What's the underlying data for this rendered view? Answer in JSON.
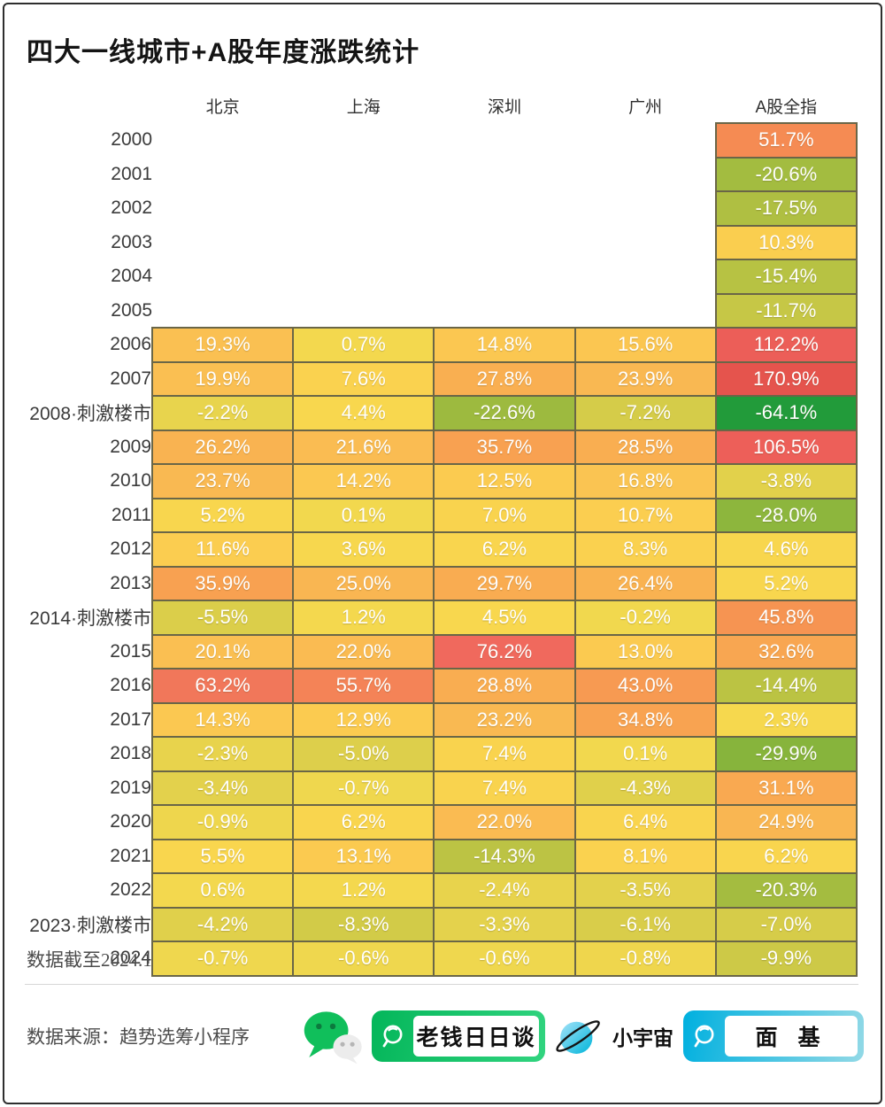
{
  "title": "四大一线城市+A股年度涨跌统计",
  "chart_data": {
    "type": "heatmap",
    "title": "四大一线城市+A股年度涨跌统计",
    "unit": "%",
    "columns": [
      "北京",
      "上海",
      "深圳",
      "广州",
      "A股全指"
    ],
    "rows": [
      {
        "label": "2000",
        "values": [
          null,
          null,
          null,
          null,
          51.7
        ]
      },
      {
        "label": "2001",
        "values": [
          null,
          null,
          null,
          null,
          -20.6
        ]
      },
      {
        "label": "2002",
        "values": [
          null,
          null,
          null,
          null,
          -17.5
        ]
      },
      {
        "label": "2003",
        "values": [
          null,
          null,
          null,
          null,
          10.3
        ]
      },
      {
        "label": "2004",
        "values": [
          null,
          null,
          null,
          null,
          -15.4
        ]
      },
      {
        "label": "2005",
        "values": [
          null,
          null,
          null,
          null,
          -11.7
        ]
      },
      {
        "label": "2006",
        "values": [
          19.3,
          0.7,
          14.8,
          15.6,
          112.2
        ]
      },
      {
        "label": "2007",
        "values": [
          19.9,
          7.6,
          27.8,
          23.9,
          170.9
        ]
      },
      {
        "label": "2008·刺激楼市",
        "values": [
          -2.2,
          4.4,
          -22.6,
          -7.2,
          -64.1
        ]
      },
      {
        "label": "2009",
        "values": [
          26.2,
          21.6,
          35.7,
          28.5,
          106.5
        ]
      },
      {
        "label": "2010",
        "values": [
          23.7,
          14.2,
          12.5,
          16.8,
          -3.8
        ]
      },
      {
        "label": "2011",
        "values": [
          5.2,
          0.1,
          7.0,
          10.7,
          -28.0
        ]
      },
      {
        "label": "2012",
        "values": [
          11.6,
          3.6,
          6.2,
          8.3,
          4.6
        ]
      },
      {
        "label": "2013",
        "values": [
          35.9,
          25.0,
          29.7,
          26.4,
          5.2
        ]
      },
      {
        "label": "2014·刺激楼市",
        "values": [
          -5.5,
          1.2,
          4.5,
          -0.2,
          45.8
        ]
      },
      {
        "label": "2015",
        "values": [
          20.1,
          22.0,
          76.2,
          13.0,
          32.6
        ]
      },
      {
        "label": "2016",
        "values": [
          63.2,
          55.7,
          28.8,
          43.0,
          -14.4
        ]
      },
      {
        "label": "2017",
        "values": [
          14.3,
          12.9,
          23.2,
          34.8,
          2.3
        ]
      },
      {
        "label": "2018",
        "values": [
          -2.3,
          -5.0,
          7.4,
          0.1,
          -29.9
        ]
      },
      {
        "label": "2019",
        "values": [
          -3.4,
          -0.7,
          7.4,
          -4.3,
          31.1
        ]
      },
      {
        "label": "2020",
        "values": [
          -0.9,
          6.2,
          22.0,
          6.4,
          24.9
        ]
      },
      {
        "label": "2021",
        "values": [
          5.5,
          13.1,
          -14.3,
          8.1,
          6.2
        ]
      },
      {
        "label": "2022",
        "values": [
          0.6,
          1.2,
          -2.4,
          -3.5,
          -20.3
        ]
      },
      {
        "label": "2023·刺激楼市",
        "values": [
          -4.2,
          -8.3,
          -3.3,
          -6.1,
          -7.0
        ]
      },
      {
        "label": "2024",
        "values": [
          -0.7,
          -0.6,
          -0.6,
          -0.8,
          -9.9
        ]
      }
    ],
    "legend_position": "none",
    "grid": true,
    "cell_border_color": "#6a6647",
    "colormap_stops": [
      [
        -65,
        "#1f9a3a"
      ],
      [
        -30,
        "#87b43c"
      ],
      [
        -25,
        "#95b83e"
      ],
      [
        -20,
        "#a5bc40"
      ],
      [
        -15,
        "#b9c243"
      ],
      [
        -10,
        "#cdc947"
      ],
      [
        -6,
        "#d9cd4a"
      ],
      [
        -3,
        "#e5d24c"
      ],
      [
        0,
        "#f2d84e"
      ],
      [
        3,
        "#f7d84e"
      ],
      [
        6,
        "#f9d54e"
      ],
      [
        9,
        "#fad04f"
      ],
      [
        12,
        "#fbcc50"
      ],
      [
        15,
        "#fbc751"
      ],
      [
        18,
        "#fac252"
      ],
      [
        21,
        "#fabd52"
      ],
      [
        24,
        "#f9b852"
      ],
      [
        27,
        "#f9b151"
      ],
      [
        30,
        "#f9ab51"
      ],
      [
        34,
        "#f8a451"
      ],
      [
        38,
        "#f89e51"
      ],
      [
        43,
        "#f79a52"
      ],
      [
        47,
        "#f69252"
      ],
      [
        52,
        "#f58b53"
      ],
      [
        56,
        "#f48257"
      ],
      [
        63,
        "#f1775a"
      ],
      [
        70,
        "#f06e5c"
      ],
      [
        80,
        "#f0665d"
      ],
      [
        100,
        "#ee615a"
      ],
      [
        115,
        "#ec5d57"
      ],
      [
        140,
        "#e95851"
      ],
      [
        175,
        "#e4534d"
      ]
    ]
  },
  "footer": {
    "data_cutoff": "数据截至2024.1",
    "source": "数据来源：趋势选筹小程序",
    "platforms": [
      {
        "icon": "wechat-icon",
        "badge": "老钱日日谈"
      },
      {
        "icon": "planet-icon",
        "label": "小宇宙",
        "badge": "面 基"
      }
    ]
  },
  "colors": {
    "wechat_green": "#10bf5b",
    "badge_green": "#0dc263",
    "badge_blue": "#00b0df",
    "cell_border": "#6a6647",
    "max_negative_green": "#1f9a3a",
    "max_positive_red": "#e4544e"
  }
}
